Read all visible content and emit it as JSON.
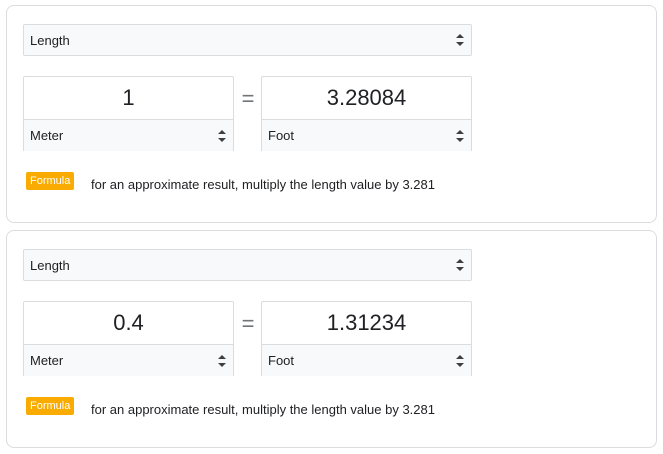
{
  "converters": [
    {
      "unit_type": "Length",
      "input_value": "1",
      "input_unit": "Meter",
      "output_value": "3.28084",
      "output_unit": "Foot",
      "equals": "=",
      "formula_label": "Formula",
      "formula_text": "for an approximate result, multiply the length value by 3.281"
    },
    {
      "unit_type": "Length",
      "input_value": "0.4",
      "input_unit": "Meter",
      "output_value": "1.31234",
      "output_unit": "Foot",
      "equals": "=",
      "formula_label": "Formula",
      "formula_text": "for an approximate result, multiply the length value by 3.281"
    }
  ]
}
